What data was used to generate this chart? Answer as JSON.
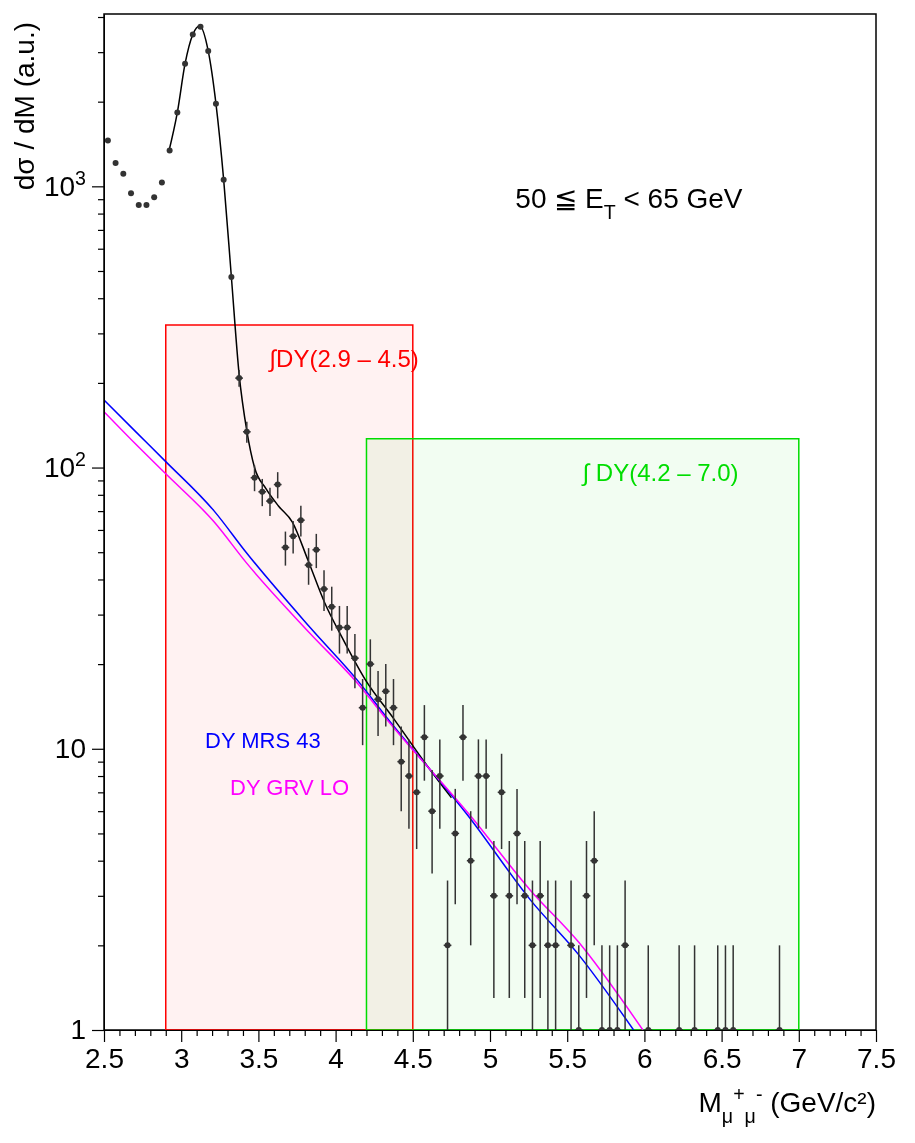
{
  "chart_data": {
    "type": "scatter",
    "xlabel": "M$_{μ}$$^{+}$$_{μ}$$^{-}$ (GeV/c²)",
    "ylabel": "dσ / dM (a.u.)",
    "log": "y",
    "xlim": [
      2.5,
      7.5
    ],
    "ylim": [
      1,
      4100
    ],
    "xticks": [
      2.5,
      {
        "value": 2.6,
        "label": null
      },
      {
        "value": 2.7,
        "label": null
      },
      {
        "value": 2.8,
        "label": null
      },
      {
        "value": 2.9,
        "label": null
      },
      3,
      {
        "value": 3.1,
        "label": null
      },
      {
        "value": 3.2,
        "label": null
      },
      {
        "value": 3.3,
        "label": null
      },
      {
        "value": 3.4,
        "label": null
      },
      3.5,
      {
        "value": 3.6,
        "label": null
      },
      {
        "value": 3.7,
        "label": null
      },
      {
        "value": 3.8,
        "label": null
      },
      {
        "value": 3.9,
        "label": null
      },
      4,
      {
        "value": 4.1,
        "label": null
      },
      {
        "value": 4.2,
        "label": null
      },
      {
        "value": 4.3,
        "label": null
      },
      {
        "value": 4.4,
        "label": null
      },
      4.5,
      {
        "value": 4.6,
        "label": null
      },
      {
        "value": 4.7,
        "label": null
      },
      {
        "value": 4.8,
        "label": null
      },
      {
        "value": 4.9,
        "label": null
      },
      5,
      {
        "value": 5.1,
        "label": null
      },
      {
        "value": 5.2,
        "label": null
      },
      {
        "value": 5.3,
        "label": null
      },
      {
        "value": 5.4,
        "label": null
      },
      5.5,
      {
        "value": 5.6,
        "label": null
      },
      {
        "value": 5.7,
        "label": null
      },
      {
        "value": 5.8,
        "label": null
      },
      {
        "value": 5.9,
        "label": null
      },
      6,
      {
        "value": 6.1,
        "label": null
      },
      {
        "value": 6.2,
        "label": null
      },
      {
        "value": 6.3,
        "label": null
      },
      {
        "value": 6.4,
        "label": null
      },
      6.5,
      {
        "value": 6.6,
        "label": null
      },
      {
        "value": 6.7,
        "label": null
      },
      {
        "value": 6.8,
        "label": null
      },
      {
        "value": 6.9,
        "label": null
      },
      7,
      {
        "value": 7.1,
        "label": null
      },
      {
        "value": 7.2,
        "label": null
      },
      {
        "value": 7.3,
        "label": null
      },
      {
        "value": 7.4,
        "label": null
      },
      7.5
    ],
    "yticks": [
      1,
      {
        "value": 2,
        "label": null
      },
      {
        "value": 3,
        "label": null
      },
      {
        "value": 4,
        "label": null
      },
      {
        "value": 5,
        "label": null
      },
      {
        "value": 6,
        "label": null
      },
      {
        "value": 7,
        "label": null
      },
      {
        "value": 8,
        "label": null
      },
      {
        "value": 9,
        "label": null
      },
      10,
      {
        "value": 20,
        "label": null
      },
      {
        "value": 30,
        "label": null
      },
      {
        "value": 40,
        "label": null
      },
      {
        "value": 50,
        "label": null
      },
      {
        "value": 60,
        "label": null
      },
      {
        "value": 70,
        "label": null
      },
      {
        "value": 80,
        "label": null
      },
      {
        "value": 90,
        "label": null
      },
      {
        "value": 100,
        "label": "10$^{2}$"
      },
      {
        "value": 200,
        "label": null
      },
      {
        "value": 300,
        "label": null
      },
      {
        "value": 400,
        "label": null
      },
      {
        "value": 500,
        "label": null
      },
      {
        "value": 600,
        "label": null
      },
      {
        "value": 700,
        "label": null
      },
      {
        "value": 800,
        "label": null
      },
      {
        "value": 900,
        "label": null
      },
      {
        "value": 1000,
        "label": "10$^{3}$"
      },
      {
        "value": 2000,
        "label": null
      },
      {
        "value": 3000,
        "label": null
      },
      {
        "value": 4000,
        "label": null
      }
    ],
    "bands": [
      {
        "axis": "x",
        "from": 2.9,
        "to": 4.5,
        "label": "∫DY(2.9 – 4.5)",
        "color": "#ff0000"
      },
      {
        "axis": "x",
        "from": 4.2,
        "to": 7.0,
        "label": "∫ DY(4.2 – 7.0)",
        "color": "#00dd00"
      }
    ],
    "annotations": [
      "50 ≦ E$_{T}$ < 65 GeV"
    ],
    "series": [
      {
        "color": "#333333",
        "marker": "circle",
        "x": [
          2.525,
          2.575,
          2.625,
          2.675,
          2.725,
          2.775,
          2.825,
          2.875,
          2.925,
          2.975,
          3.025,
          3.075,
          3.125,
          3.175,
          3.225,
          3.275,
          3.325,
          3.375,
          3.425,
          3.475,
          3.525,
          3.575,
          3.625,
          3.675,
          3.725,
          3.775,
          3.825,
          3.875,
          3.925,
          3.975,
          4.025,
          4.075,
          4.125,
          4.175,
          4.225,
          4.275,
          4.325,
          4.375,
          4.425,
          4.475,
          4.525,
          4.575,
          4.625,
          4.675,
          4.725,
          4.775,
          4.825,
          4.875,
          4.925,
          4.975,
          5.025,
          5.075,
          5.125,
          5.175,
          5.225,
          5.275,
          5.325,
          5.375,
          5.425,
          5.525,
          5.575,
          5.625,
          5.675,
          5.725,
          5.775,
          5.825,
          5.875,
          6.025,
          6.225,
          6.325,
          6.475,
          6.525,
          6.575,
          6.875
        ],
        "values": [
          1455,
          1210,
          1108,
          945,
          859,
          859,
          915,
          1031,
          1342,
          1832,
          2729,
          3467,
          3697,
          3030,
          1968,
          1056,
          476,
          208,
          134,
          92,
          82,
          76,
          87,
          52,
          57,
          65,
          45,
          51,
          37,
          32,
          27,
          27,
          21,
          14,
          20,
          15,
          16,
          14,
          9,
          8,
          7,
          11,
          6,
          8,
          2,
          5,
          11,
          4,
          8,
          8,
          3,
          7,
          3,
          5,
          3,
          2,
          3,
          2,
          2,
          2,
          1,
          3,
          4,
          1,
          1,
          1,
          2,
          1,
          1,
          1,
          1,
          1,
          1,
          1
        ],
        "errors": [
          null,
          null,
          null,
          null,
          null,
          null,
          null,
          null,
          null,
          null,
          null,
          null,
          null,
          null,
          null,
          null,
          null,
          14.4,
          11.6,
          9.6,
          9.1,
          8.7,
          9.3,
          7.2,
          7.5,
          8.1,
          6.7,
          7.1,
          6.1,
          5.7,
          5.2,
          5.2,
          4.6,
          3.7,
          4.5,
          3.9,
          4,
          3.7,
          3,
          2.8,
          2.6,
          3.3,
          2.4,
          2.8,
          [
            1,
            3.4
          ],
          2.2,
          3.3,
          2,
          2.8,
          2.8,
          1.7,
          2.6,
          1.7,
          2.2,
          1.7,
          [
            1,
            3.4
          ],
          1.7,
          [
            1,
            3.4
          ],
          [
            1,
            3.4
          ],
          [
            1,
            3.4
          ],
          [
            1,
            2
          ],
          1.7,
          2,
          [
            1,
            2
          ],
          [
            1,
            2
          ],
          [
            1,
            2
          ],
          [
            1,
            3.4
          ],
          [
            1,
            2
          ],
          [
            1,
            2
          ],
          [
            1,
            2
          ],
          [
            1,
            2
          ],
          [
            1,
            2
          ],
          [
            1,
            2
          ],
          [
            1,
            2
          ]
        ],
        "xerrors": [
          null,
          null,
          null,
          null,
          null,
          null,
          null,
          null,
          null,
          null,
          null,
          null,
          null,
          null,
          null,
          null,
          null,
          0.025,
          0.025,
          0.025,
          0.025,
          0.025,
          0.025,
          0.025,
          0.025,
          0.025,
          0.025,
          0.025,
          0.025,
          0.025,
          0.025,
          0.025,
          0.025,
          0.025,
          0.025,
          0.025,
          0.025,
          0.025,
          0.025,
          0.025,
          0.025,
          0.025,
          0.025,
          0.025,
          0.025,
          0.025,
          0.025,
          0.025,
          0.025,
          0.025,
          0.025,
          0.025,
          0.025,
          0.025,
          0.025,
          0.025,
          0.025,
          0.025,
          0.025,
          0.025,
          0.025,
          0.025,
          0.025,
          0.025,
          0.025,
          0.025,
          0.025,
          0.025,
          0.025,
          0.025,
          0.025,
          0.025,
          0.025,
          0.025
        ]
      },
      {
        "type": "line",
        "color": "#000000",
        "x": [
          2.92,
          2.975,
          3.025,
          3.075,
          3.12,
          3.175,
          3.225,
          3.275,
          3.325,
          3.375,
          3.425,
          3.475,
          3.55,
          3.63,
          3.72,
          3.82,
          3.93,
          4.04,
          4.19,
          4.376,
          4.6,
          4.75
        ],
        "values": [
          1330,
          1832,
          2729,
          3467,
          3720,
          3030,
          1968,
          1056,
          476,
          215,
          135,
          100,
          84,
          73,
          64,
          47,
          33,
          25,
          17.7,
          12.8,
          8.6,
          6.7
        ]
      },
      {
        "type": "line",
        "name": "DY MRS 43",
        "color": "#0000ff",
        "x": [
          2.5,
          2.7,
          2.9,
          3.214,
          3.42,
          3.835,
          4.146,
          4.332,
          4.873,
          5.264,
          5.575,
          5.93
        ],
        "values": [
          174,
          135,
          105,
          70,
          50,
          27,
          17.4,
          12.9,
          5.64,
          2.89,
          1.85,
          1.0
        ]
      },
      {
        "type": "line",
        "name": "DY GRV LO",
        "color": "#ff00ff",
        "x": [
          2.5,
          2.7,
          2.9,
          3.214,
          3.42,
          3.835,
          4.146,
          4.332,
          4.873,
          5.264,
          5.575,
          5.99
        ],
        "values": [
          158,
          122,
          95,
          64,
          46,
          25.7,
          17,
          12.7,
          5.78,
          3.13,
          2.05,
          1.0
        ]
      }
    ]
  }
}
